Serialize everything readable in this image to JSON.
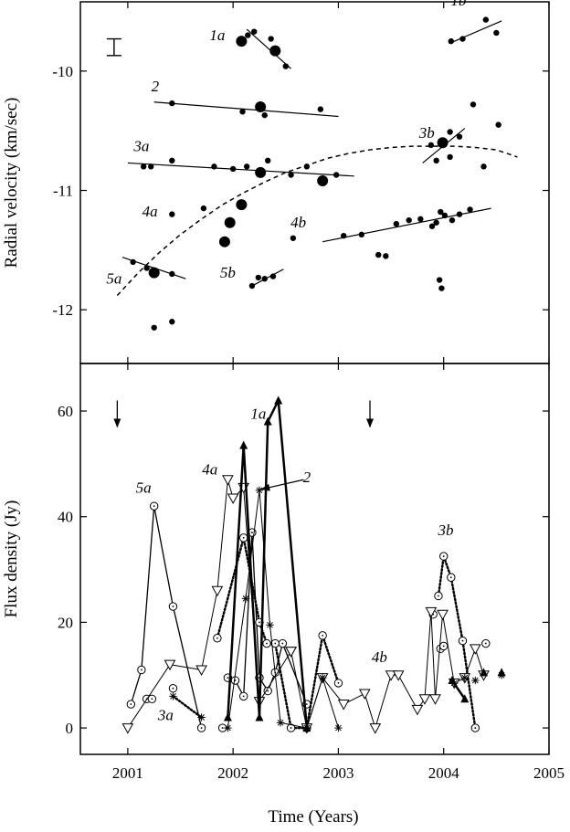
{
  "figure": {
    "xlabel": "Time (Years)",
    "top_ylabel": "Radial velocity (km/sec)",
    "bottom_ylabel": "Flux density (Jy)"
  },
  "chart_data": [
    {
      "type": "scatter",
      "panel": "top",
      "ylabel": "Radial velocity (km/sec)",
      "xlim": [
        2000.55,
        2005.0
      ],
      "ylim": [
        -12.45,
        -9.42
      ],
      "xticks": [
        2001,
        2002,
        2003,
        2004,
        2005
      ],
      "yticks": [
        -10,
        -11,
        -12
      ],
      "ytick_labels": [
        "-10",
        "-11",
        "-12"
      ],
      "error_bar": {
        "x": 2000.87,
        "y": -9.8,
        "half_height": 0.07
      },
      "points": [
        {
          "x": 2002.08,
          "y": -9.75,
          "size": "large"
        },
        {
          "x": 2002.14,
          "y": -9.7,
          "size": "small"
        },
        {
          "x": 2002.2,
          "y": -9.67,
          "size": "small"
        },
        {
          "x": 2002.4,
          "y": -9.83,
          "size": "large"
        },
        {
          "x": 2002.36,
          "y": -9.73,
          "size": "small"
        },
        {
          "x": 2002.5,
          "y": -9.96,
          "size": "small"
        },
        {
          "x": 2001.42,
          "y": -10.27,
          "size": "small"
        },
        {
          "x": 2002.26,
          "y": -10.3,
          "size": "large"
        },
        {
          "x": 2002.09,
          "y": -10.34,
          "size": "small"
        },
        {
          "x": 2002.3,
          "y": -10.37,
          "size": "small"
        },
        {
          "x": 2002.83,
          "y": -10.32,
          "size": "small"
        },
        {
          "x": 2001.15,
          "y": -10.8,
          "size": "small"
        },
        {
          "x": 2001.22,
          "y": -10.8,
          "size": "small"
        },
        {
          "x": 2001.42,
          "y": -10.75,
          "size": "small"
        },
        {
          "x": 2001.82,
          "y": -10.8,
          "size": "small"
        },
        {
          "x": 2002.0,
          "y": -10.82,
          "size": "small"
        },
        {
          "x": 2002.13,
          "y": -10.8,
          "size": "small"
        },
        {
          "x": 2002.26,
          "y": -10.85,
          "size": "large"
        },
        {
          "x": 2002.33,
          "y": -10.75,
          "size": "small"
        },
        {
          "x": 2002.55,
          "y": -10.87,
          "size": "small"
        },
        {
          "x": 2002.7,
          "y": -10.8,
          "size": "small"
        },
        {
          "x": 2002.85,
          "y": -10.92,
          "size": "large"
        },
        {
          "x": 2002.98,
          "y": -10.87,
          "size": "small"
        },
        {
          "x": 2001.42,
          "y": -11.2,
          "size": "small"
        },
        {
          "x": 2001.72,
          "y": -11.15,
          "size": "small"
        },
        {
          "x": 2001.97,
          "y": -11.27,
          "size": "large"
        },
        {
          "x": 2002.08,
          "y": -11.12,
          "size": "large"
        },
        {
          "x": 2001.92,
          "y": -11.43,
          "size": "large"
        },
        {
          "x": 2002.57,
          "y": -11.4,
          "size": "small"
        },
        {
          "x": 2003.05,
          "y": -11.38,
          "size": "small"
        },
        {
          "x": 2003.22,
          "y": -11.37,
          "size": "small"
        },
        {
          "x": 2003.55,
          "y": -11.28,
          "size": "small"
        },
        {
          "x": 2003.67,
          "y": -11.25,
          "size": "small"
        },
        {
          "x": 2003.78,
          "y": -11.24,
          "size": "small"
        },
        {
          "x": 2003.89,
          "y": -11.3,
          "size": "small"
        },
        {
          "x": 2003.93,
          "y": -11.27,
          "size": "small"
        },
        {
          "x": 2003.97,
          "y": -11.18,
          "size": "small"
        },
        {
          "x": 2004.01,
          "y": -11.21,
          "size": "small"
        },
        {
          "x": 2004.08,
          "y": -11.25,
          "size": "small"
        },
        {
          "x": 2004.15,
          "y": -11.2,
          "size": "small"
        },
        {
          "x": 2004.25,
          "y": -11.16,
          "size": "small"
        },
        {
          "x": 2003.38,
          "y": -11.54,
          "size": "small"
        },
        {
          "x": 2003.45,
          "y": -11.55,
          "size": "small"
        },
        {
          "x": 2003.96,
          "y": -11.75,
          "size": "small"
        },
        {
          "x": 2003.98,
          "y": -11.82,
          "size": "small"
        },
        {
          "x": 2003.0,
          "y": -10.62,
          "size": "hidden"
        },
        {
          "x": 2003.88,
          "y": -10.62,
          "size": "small"
        },
        {
          "x": 2003.99,
          "y": -10.6,
          "size": "large"
        },
        {
          "x": 2004.06,
          "y": -10.51,
          "size": "small"
        },
        {
          "x": 2004.15,
          "y": -10.55,
          "size": "small"
        },
        {
          "x": 2003.93,
          "y": -10.75,
          "size": "small"
        },
        {
          "x": 2004.06,
          "y": -10.72,
          "size": "small"
        },
        {
          "x": 2004.28,
          "y": -10.28,
          "size": "small"
        },
        {
          "x": 2004.52,
          "y": -10.45,
          "size": "small"
        },
        {
          "x": 2004.38,
          "y": -10.8,
          "size": "small"
        },
        {
          "x": 2004.07,
          "y": -9.75,
          "size": "small"
        },
        {
          "x": 2004.18,
          "y": -9.73,
          "size": "small"
        },
        {
          "x": 2004.4,
          "y": -9.57,
          "size": "small"
        },
        {
          "x": 2004.5,
          "y": -9.68,
          "size": "small"
        },
        {
          "x": 2001.05,
          "y": -11.6,
          "size": "small"
        },
        {
          "x": 2001.18,
          "y": -11.65,
          "size": "small"
        },
        {
          "x": 2001.25,
          "y": -11.69,
          "size": "large"
        },
        {
          "x": 2001.42,
          "y": -11.7,
          "size": "small"
        },
        {
          "x": 2001.25,
          "y": -12.15,
          "size": "small"
        },
        {
          "x": 2001.42,
          "y": -12.1,
          "size": "small"
        },
        {
          "x": 2002.18,
          "y": -11.8,
          "size": "small"
        },
        {
          "x": 2002.24,
          "y": -11.73,
          "size": "small"
        },
        {
          "x": 2002.3,
          "y": -11.74,
          "size": "small"
        },
        {
          "x": 2002.38,
          "y": -11.72,
          "size": "small"
        }
      ],
      "fit_lines": [
        {
          "label": "1a",
          "x": [
            2002.13,
            2002.55
          ],
          "y": [
            -9.65,
            -9.98
          ]
        },
        {
          "label": "1b",
          "x": [
            2004.05,
            2004.55
          ],
          "y": [
            -9.77,
            -9.58
          ]
        },
        {
          "label": "2",
          "x": [
            2001.25,
            2003.0
          ],
          "y": [
            -10.26,
            -10.38
          ]
        },
        {
          "label": "3a",
          "x": [
            2001.0,
            2003.15
          ],
          "y": [
            -10.77,
            -10.88
          ]
        },
        {
          "label": "3b",
          "x": [
            2003.8,
            2004.2
          ],
          "y": [
            -10.77,
            -10.48
          ]
        },
        {
          "label": "4b",
          "x": [
            2002.85,
            2004.45
          ],
          "y": [
            -11.43,
            -11.15
          ]
        },
        {
          "label": "5a",
          "x": [
            2000.95,
            2001.55
          ],
          "y": [
            -11.56,
            -11.74
          ]
        },
        {
          "label": "5b",
          "x": [
            2002.18,
            2002.48
          ],
          "y": [
            -11.8,
            -11.66
          ]
        }
      ],
      "dashed_curve": {
        "x": [
          2000.9,
          2001.1,
          2001.3,
          2001.5,
          2001.7,
          2001.9,
          2002.1,
          2002.3,
          2002.5,
          2002.7,
          2002.9,
          2003.1,
          2003.3,
          2003.5,
          2003.7,
          2003.9,
          2004.1,
          2004.3,
          2004.5,
          2004.7
        ],
        "y": [
          -11.88,
          -11.69,
          -11.52,
          -11.37,
          -11.24,
          -11.12,
          -11.02,
          -10.93,
          -10.85,
          -10.79,
          -10.73,
          -10.69,
          -10.66,
          -10.64,
          -10.63,
          -10.63,
          -10.63,
          -10.64,
          -10.66,
          -10.72
        ]
      },
      "annotations": [
        {
          "text": "1a",
          "x": 2001.85,
          "y": -9.74
        },
        {
          "text": "1b",
          "x": 2004.14,
          "y": -9.45
        },
        {
          "text": "2",
          "x": 2001.26,
          "y": -10.17
        },
        {
          "text": "3a",
          "x": 2001.13,
          "y": -10.67
        },
        {
          "text": "3b",
          "x": 2003.84,
          "y": -10.56
        },
        {
          "text": "4a",
          "x": 2001.21,
          "y": -11.22
        },
        {
          "text": "4b",
          "x": 2002.62,
          "y": -11.31
        },
        {
          "text": "5a",
          "x": 2000.87,
          "y": -11.78
        },
        {
          "text": "5b",
          "x": 2001.95,
          "y": -11.73
        }
      ]
    },
    {
      "type": "line",
      "panel": "bottom",
      "xlabel": "Time (Years)",
      "ylabel": "Flux density (Jy)",
      "xlim": [
        2000.55,
        2005.0
      ],
      "ylim": [
        -5,
        69
      ],
      "xticks": [
        2001,
        2002,
        2003,
        2004,
        2005
      ],
      "xtick_labels": [
        "2001",
        "2002",
        "2003",
        "2004",
        "2005"
      ],
      "yticks": [
        0,
        20,
        40,
        60
      ],
      "ytick_labels": [
        "0",
        "20",
        "40",
        "60"
      ],
      "arrows": [
        {
          "x": 2000.9,
          "y_top": 62,
          "y_bottom": 57
        },
        {
          "x": 2003.3,
          "y_top": 62,
          "y_bottom": 57
        }
      ],
      "series": [
        {
          "marker": "circle",
          "line": "solid",
          "width": 1.3,
          "x": [
            2001.03,
            2001.13,
            2001.25,
            2001.43,
            2001.7
          ],
          "y": [
            4.5,
            11.0,
            42.0,
            23.0,
            0.0
          ]
        },
        {
          "marker": "circle",
          "line": "none",
          "width": 1.0,
          "x": [
            2001.18,
            2001.23
          ],
          "y": [
            5.5,
            5.5
          ]
        },
        {
          "marker": "circle",
          "line": "solid",
          "width": 1.3,
          "x": [
            2001.95,
            2002.02,
            2002.1,
            2002.18,
            2002.25,
            2002.33,
            2002.4,
            2002.47,
            2002.7
          ],
          "y": [
            9.5,
            9.0,
            6.0,
            37.0,
            9.5,
            7.0,
            10.5,
            16.0,
            4.5
          ]
        },
        {
          "marker": "circle",
          "line": "dotted",
          "width": 2.5,
          "x": [
            2001.85,
            2002.1,
            2002.25,
            2002.32,
            2002.4,
            2002.55,
            2002.7,
            2002.85,
            2003.0
          ],
          "y": [
            17.0,
            36.0,
            20.0,
            16.0,
            16.0,
            0.0,
            0.0,
            17.5,
            8.5
          ]
        },
        {
          "marker": "circle",
          "line": "none",
          "width": 1.0,
          "x": [
            2001.9,
            2001.43
          ],
          "y": [
            0.0,
            7.5
          ]
        },
        {
          "marker": "circle",
          "line": "dotted",
          "width": 2.5,
          "x": [
            2003.95,
            2004.0,
            2004.07,
            2004.18,
            2004.3
          ],
          "y": [
            25.0,
            32.5,
            28.5,
            16.5,
            0.0
          ]
        },
        {
          "marker": "circle",
          "line": "none",
          "width": 1.0,
          "x": [
            2003.9,
            2003.97,
            2004.0,
            2004.4
          ],
          "y": [
            21.5,
            15.0,
            15.5,
            16.0
          ]
        },
        {
          "marker": "triangle_down",
          "line": "solid",
          "width": 1.0,
          "x": [
            2001.0,
            2001.4,
            2001.7,
            2001.85,
            2001.95,
            2002.0,
            2002.1,
            2002.25,
            2002.55
          ],
          "y": [
            0.0,
            12.0,
            11.0,
            26.0,
            47.0,
            43.5,
            45.5,
            5.0,
            14.5
          ]
        },
        {
          "marker": "triangle_down",
          "line": "solid",
          "width": 1.0,
          "x": [
            2002.55,
            2002.7,
            2002.85,
            2003.05,
            2003.25,
            2003.35,
            2003.5,
            2003.57,
            2003.75,
            2003.82,
            2003.88,
            2003.92,
            2003.99,
            2004.1,
            2004.2,
            2004.3,
            2004.38
          ],
          "y": [
            14.5,
            0.0,
            9.5,
            4.5,
            6.5,
            0.0,
            10.0,
            10.0,
            3.5,
            5.5,
            22.0,
            5.5,
            21.5,
            8.5,
            9.5,
            15.0,
            10.0
          ]
        },
        {
          "marker": "star",
          "line": "solid",
          "width": 1.0,
          "x": [
            2001.95,
            2002.12,
            2002.25,
            2002.35,
            2002.45,
            2002.7,
            2002.85,
            2003.0
          ],
          "y": [
            0.0,
            24.5,
            45.0,
            19.5,
            1.0,
            0.0,
            9.5,
            0.0
          ]
        },
        {
          "marker": "star",
          "line": "dotted",
          "width": 2.5,
          "x": [
            2001.43,
            2001.7
          ],
          "y": [
            6.0,
            2.0
          ]
        },
        {
          "marker": "star",
          "line": "none",
          "width": 1.0,
          "x": [
            2004.1,
            2004.2,
            2004.3,
            2004.55
          ],
          "y": [
            8.5,
            9.5,
            9.0,
            10.0
          ]
        },
        {
          "marker": "triangle_up",
          "line": "solid",
          "width": 2.5,
          "x": [
            2001.95,
            2002.1,
            2002.25,
            2002.33,
            2002.43,
            2002.7
          ],
          "y": [
            2.0,
            53.5,
            2.0,
            58.0,
            62.0,
            0.0
          ]
        },
        {
          "marker": "triangle_up",
          "line": "solid",
          "width": 2.5,
          "x": [
            2004.08,
            2004.2
          ],
          "y": [
            9.0,
            5.5
          ]
        },
        {
          "marker": "triangle_up",
          "line": "none",
          "width": 1.0,
          "x": [
            2004.38,
            2004.55
          ],
          "y": [
            10.5,
            10.5
          ]
        }
      ],
      "annotations": [
        {
          "text": "1a",
          "x": 2002.24,
          "y": 58.5
        },
        {
          "text": "2",
          "x": 2002.7,
          "y": 46.5
        },
        {
          "text": "3a",
          "x": 2001.36,
          "y": 1.5
        },
        {
          "text": "3b",
          "x": 2004.02,
          "y": 36.5
        },
        {
          "text": "4a",
          "x": 2001.78,
          "y": 48.0
        },
        {
          "text": "4b",
          "x": 2003.39,
          "y": 12.5
        },
        {
          "text": "5a",
          "x": 2001.15,
          "y": 44.5
        }
      ],
      "pointer": {
        "from": [
          2002.67,
          47.0
        ],
        "to": [
          2002.27,
          45.2
        ]
      }
    }
  ]
}
